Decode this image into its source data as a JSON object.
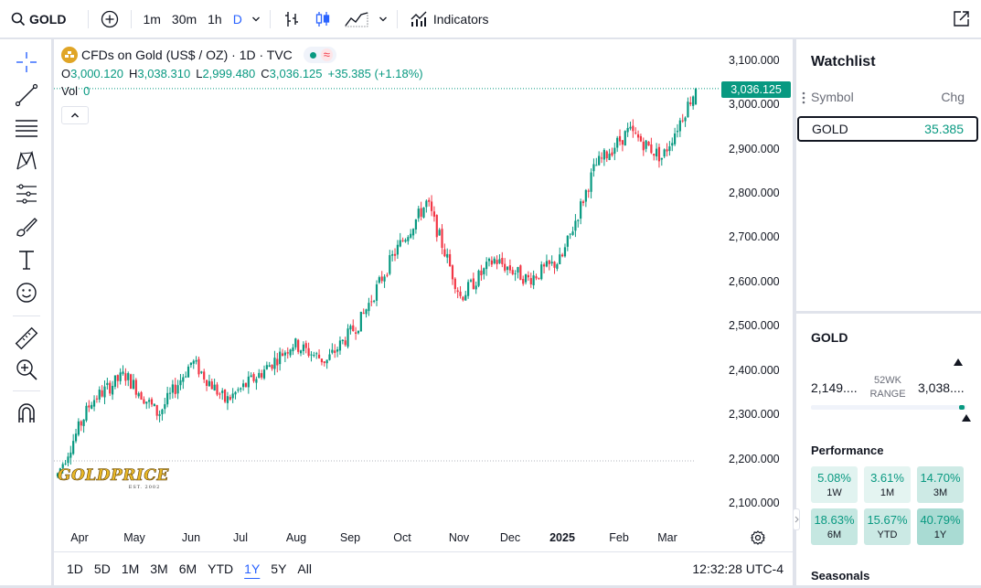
{
  "toolbar": {
    "symbol": "GOLD",
    "intervals": [
      "1m",
      "30m",
      "1h",
      "D"
    ],
    "active_interval": "D",
    "indicators_label": "Indicators"
  },
  "legend": {
    "title": "CFDs on Gold (US$ / OZ) · 1D · TVC",
    "pill_wave": "≈",
    "o_label": "O",
    "o_value": "3,000.120",
    "h_label": "H",
    "h_value": "3,038.310",
    "l_label": "L",
    "l_value": "2,999.480",
    "c_label": "C",
    "c_value": "3,036.125",
    "change": "+35.385 (+1.18%)",
    "vol_label": "Vol",
    "vol_value": "0"
  },
  "price_axis": {
    "ticks": [
      "3,100.000",
      "3,000.000",
      "2,900.000",
      "2,800.000",
      "2,700.000",
      "2,600.000",
      "2,500.000",
      "2,400.000",
      "2,300.000",
      "2,200.000",
      "2,100.000"
    ],
    "last_price": "3,036.125"
  },
  "time_axis": {
    "labels": [
      "Apr",
      "May",
      "Jun",
      "Jul",
      "Aug",
      "Sep",
      "Oct",
      "Nov",
      "Dec",
      "2025",
      "Feb",
      "Mar"
    ]
  },
  "watermark": {
    "text": "GOLDPRICE",
    "sub": "EST. 2002"
  },
  "range_bar": {
    "ranges": [
      "1D",
      "5D",
      "1M",
      "3M",
      "6M",
      "YTD",
      "1Y",
      "5Y",
      "All"
    ],
    "active": "1Y",
    "clock": "12:32:28 UTC-4"
  },
  "watchlist": {
    "title": "Watchlist",
    "col_symbol": "Symbol",
    "col_change": "Chg",
    "rows": [
      {
        "symbol": "GOLD",
        "chg": "35.385"
      }
    ]
  },
  "details": {
    "symbol": "GOLD",
    "range_low": "2,149....",
    "range_high": "3,038....",
    "range_label_1": "52WK",
    "range_label_2": "RANGE",
    "range_position_pct": 99,
    "performance_title": "Performance",
    "performance": [
      {
        "value": "5.08%",
        "label": "1W"
      },
      {
        "value": "3.61%",
        "label": "1M"
      },
      {
        "value": "14.70%",
        "label": "3M"
      },
      {
        "value": "18.63%",
        "label": "6M"
      },
      {
        "value": "15.67%",
        "label": "YTD"
      },
      {
        "value": "40.79%",
        "label": "1Y"
      }
    ],
    "seasonals_title": "Seasonals"
  },
  "colors": {
    "up": "#089981",
    "down": "#f23645",
    "accent": "#2962ff"
  },
  "chart_data": {
    "type": "candlestick",
    "title": "CFDs on Gold (US$ / OZ) · 1D · TVC",
    "x_labels": [
      "Apr",
      "May",
      "Jun",
      "Jul",
      "Aug",
      "Sep",
      "Oct",
      "Nov",
      "Dec",
      "2025",
      "Feb",
      "Mar"
    ],
    "ylim": [
      2080,
      3130
    ],
    "series": [
      {
        "name": "GOLD",
        "points": [
          {
            "x": "Mar 2024",
            "y": 2165
          },
          {
            "x": "Apr 2024",
            "y": 2330
          },
          {
            "x": "mid Apr 2024",
            "y": 2390
          },
          {
            "x": "early May 2024",
            "y": 2300
          },
          {
            "x": "mid May 2024",
            "y": 2420
          },
          {
            "x": "Jun 2024",
            "y": 2330
          },
          {
            "x": "Jul 2024",
            "y": 2390
          },
          {
            "x": "mid Jul 2024",
            "y": 2460
          },
          {
            "x": "Aug 2024",
            "y": 2420
          },
          {
            "x": "Sep 2024",
            "y": 2510
          },
          {
            "x": "Oct 2024",
            "y": 2660
          },
          {
            "x": "end Oct 2024",
            "y": 2780
          },
          {
            "x": "mid Nov 2024",
            "y": 2565
          },
          {
            "x": "Dec 2024",
            "y": 2650
          },
          {
            "x": "end Dec 2024",
            "y": 2605
          },
          {
            "x": "Jan 2025",
            "y": 2650
          },
          {
            "x": "Feb 2025",
            "y": 2860
          },
          {
            "x": "late Feb 2025",
            "y": 2940
          },
          {
            "x": "early Mar 2025",
            "y": 2880
          },
          {
            "x": "Mar 2025",
            "y": 3036
          }
        ],
        "last": {
          "open": 3000.12,
          "high": 3038.31,
          "low": 2999.48,
          "close": 3036.125
        }
      }
    ]
  }
}
